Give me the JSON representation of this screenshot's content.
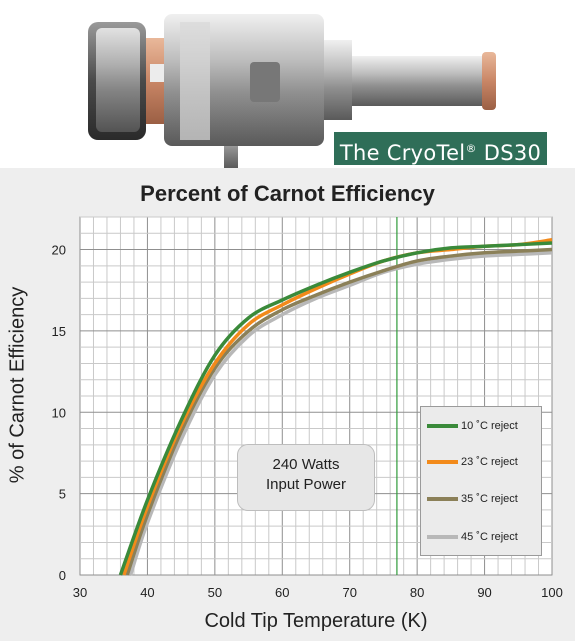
{
  "photo": {
    "caption_prefix": "The CryoTel",
    "caption_reg": "®",
    "caption_suffix": " DS30"
  },
  "chart_data": {
    "type": "line",
    "title": "Percent of Carnot Efficiency",
    "xlabel": "Cold Tip Temperature (K)",
    "ylabel": "% of Carnot Efficiency",
    "xlim": [
      30,
      100
    ],
    "ylim": [
      0,
      22
    ],
    "xticks": [
      30,
      40,
      50,
      60,
      70,
      80,
      90,
      100
    ],
    "yticks": [
      0,
      5,
      10,
      15,
      20
    ],
    "grid": true,
    "legend_position": "bottom-right",
    "reference_line_x": 77,
    "annotation": [
      "240 Watts",
      "Input Power"
    ],
    "series": [
      {
        "name": "10 ˚C reject",
        "color": "#3a8a3a",
        "x": [
          36,
          40,
          45,
          50,
          55,
          60,
          65,
          70,
          75,
          80,
          85,
          90,
          95,
          100
        ],
        "y": [
          0,
          4.6,
          9.5,
          13.5,
          15.8,
          16.9,
          17.8,
          18.6,
          19.3,
          19.8,
          20.1,
          20.2,
          20.3,
          20.4
        ]
      },
      {
        "name": "23 ˚C reject",
        "color": "#f28a1a",
        "x": [
          36.5,
          40,
          45,
          50,
          55,
          60,
          65,
          70,
          75,
          80,
          85,
          90,
          95,
          100
        ],
        "y": [
          0,
          4.2,
          9.2,
          13.0,
          15.4,
          16.6,
          17.6,
          18.5,
          19.3,
          19.8,
          20.0,
          20.2,
          20.3,
          20.6
        ]
      },
      {
        "name": "35 ˚C reject",
        "color": "#8b8058",
        "x": [
          37,
          40,
          45,
          50,
          55,
          60,
          65,
          70,
          75,
          80,
          85,
          90,
          95,
          100
        ],
        "y": [
          0,
          3.7,
          8.8,
          12.7,
          15.0,
          16.3,
          17.2,
          18.0,
          18.7,
          19.3,
          19.6,
          19.8,
          19.9,
          20.0
        ]
      },
      {
        "name": "45 ˚C reject",
        "color": "#b8b8b8",
        "x": [
          37.5,
          40,
          45,
          50,
          55,
          60,
          65,
          70,
          75,
          80,
          85,
          90,
          95,
          100
        ],
        "y": [
          0,
          3.2,
          8.3,
          12.3,
          14.7,
          16.0,
          17.0,
          17.8,
          18.6,
          19.1,
          19.4,
          19.6,
          19.7,
          19.8
        ]
      }
    ]
  }
}
